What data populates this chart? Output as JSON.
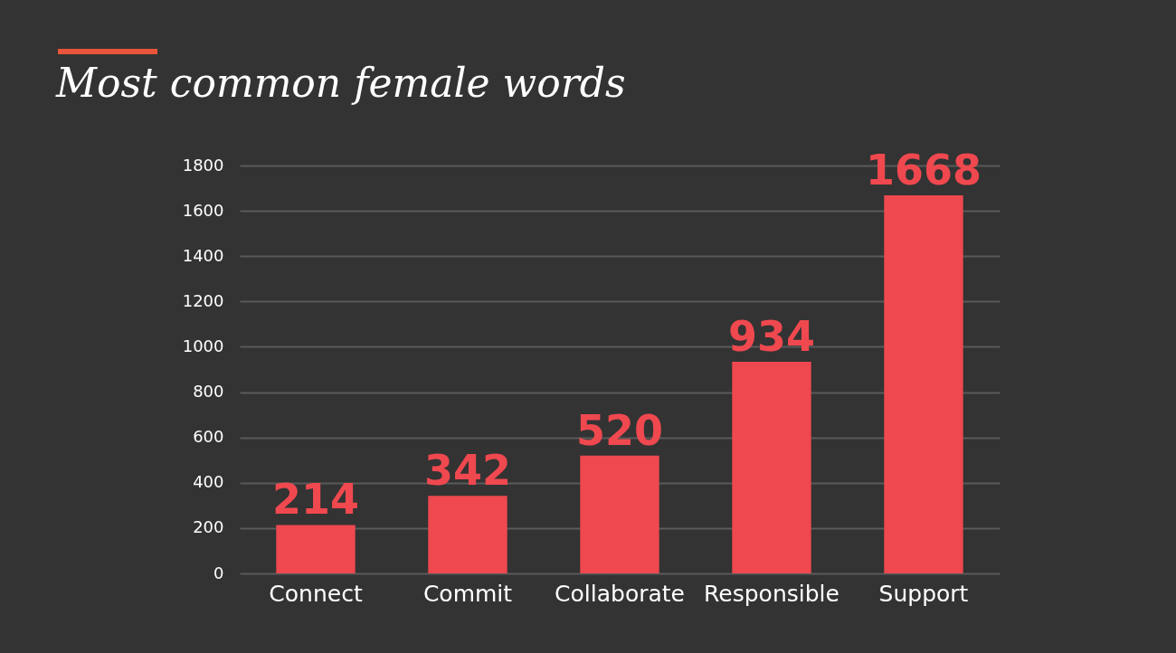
{
  "chart_data": {
    "type": "bar",
    "title": "Most common female words",
    "categories": [
      "Connect",
      "Commit",
      "Collaborate",
      "Responsible",
      "Support"
    ],
    "values": [
      214,
      342,
      520,
      934,
      1668
    ],
    "color": "#f0484f",
    "ylim": [
      0,
      1800
    ],
    "yticks": [
      0,
      200,
      400,
      600,
      800,
      1000,
      1200,
      1400,
      1600,
      1800
    ],
    "grid": "y",
    "data_labels": true
  }
}
